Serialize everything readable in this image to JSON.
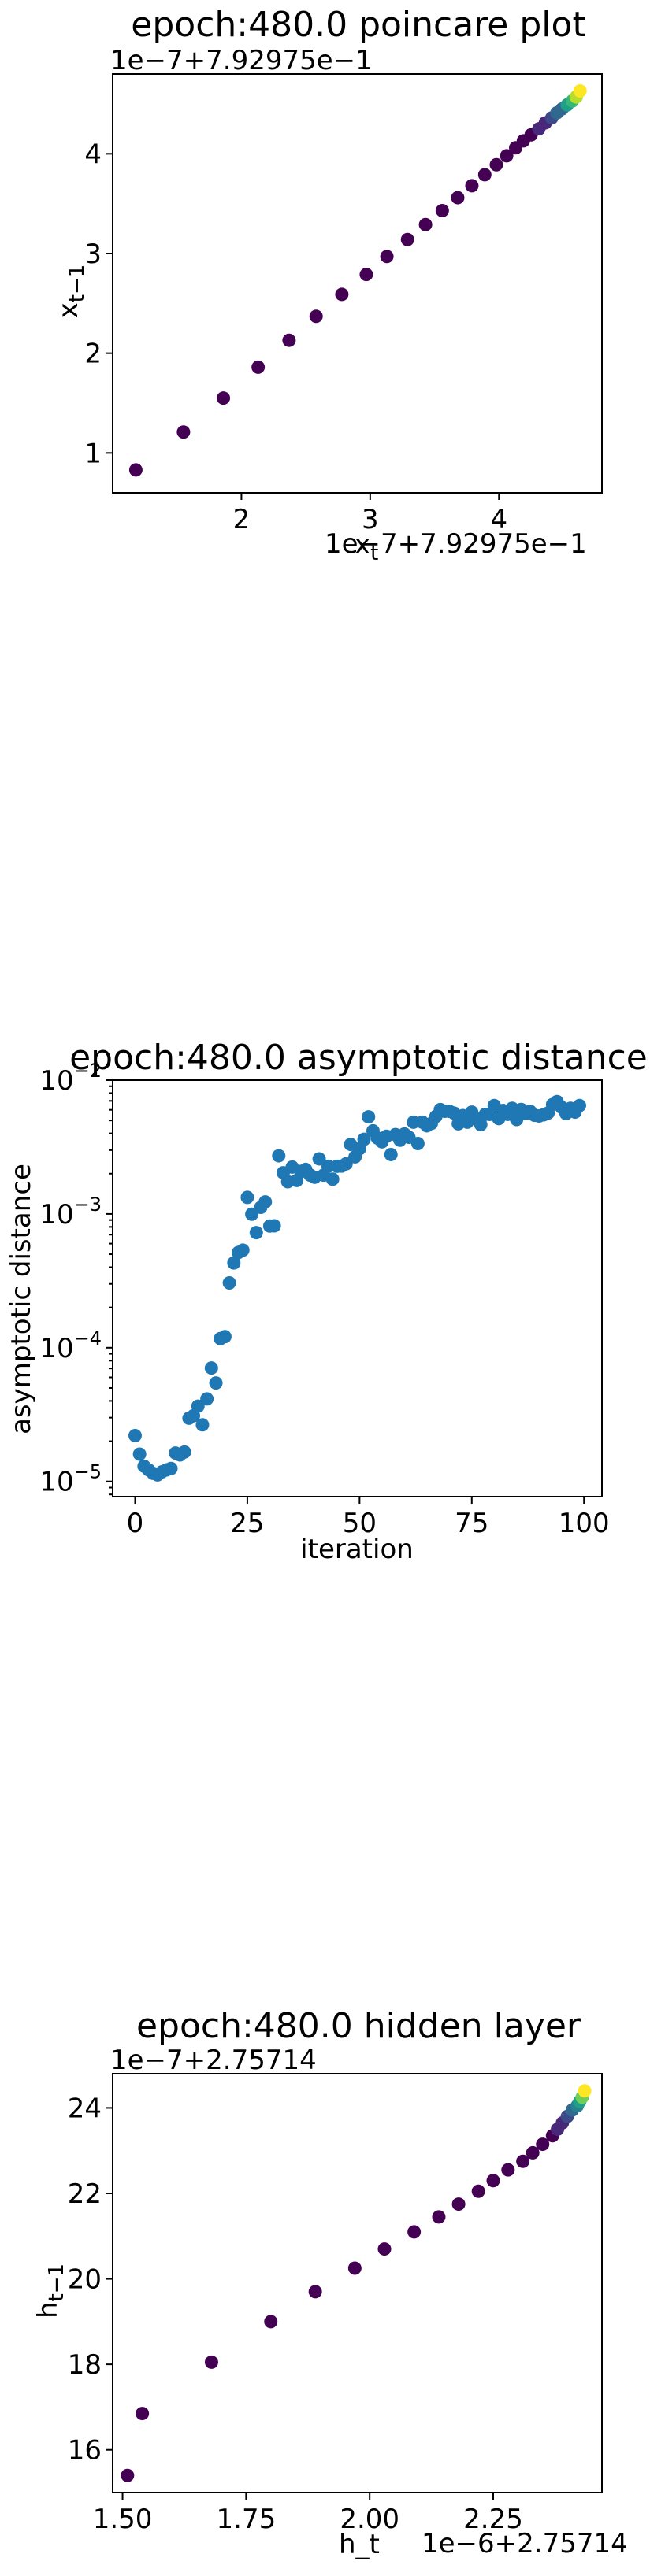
{
  "chart_data": [
    {
      "type": "scatter",
      "title": "epoch:480.0 poincare plot",
      "xlabel": "x_t",
      "ylabel": "x_{t-1}",
      "xlim": [
        1.0,
        4.8
      ],
      "ylim": [
        0.6,
        4.8
      ],
      "x_ticks": [
        2,
        3,
        4
      ],
      "y_ticks": [
        1,
        2,
        3,
        4
      ],
      "x_offset_text": "1e−7+7.92975e−1",
      "y_offset_text": "1e−7+7.92975e−1",
      "colormap": "viridis",
      "x": [
        1.18,
        1.55,
        1.86,
        2.13,
        2.37,
        2.58,
        2.78,
        2.97,
        3.13,
        3.29,
        3.43,
        3.56,
        3.68,
        3.79,
        3.89,
        3.98,
        4.06,
        4.13,
        4.19,
        4.25,
        4.31,
        4.36,
        4.41,
        4.45,
        4.49,
        4.53,
        4.57,
        4.6,
        4.63
      ],
      "y": [
        0.83,
        1.21,
        1.55,
        1.86,
        2.13,
        2.37,
        2.59,
        2.79,
        2.97,
        3.14,
        3.29,
        3.43,
        3.56,
        3.68,
        3.79,
        3.89,
        3.98,
        4.06,
        4.13,
        4.19,
        4.25,
        4.31,
        4.36,
        4.41,
        4.45,
        4.49,
        4.53,
        4.57,
        4.63
      ]
    },
    {
      "type": "scatter",
      "title": "epoch:480.0 asymptotic distance",
      "xlabel": "iteration",
      "ylabel": "asymptotic distance",
      "xlim": [
        -5,
        104
      ],
      "ylim": [
        7.7e-06,
        0.01
      ],
      "log_y": true,
      "x_ticks": [
        0,
        25,
        50,
        75,
        100
      ],
      "y_tick_exponents": [
        -5,
        -4,
        -3,
        -2
      ],
      "color": "#1f77b4",
      "x": [
        0,
        1,
        2,
        3,
        4,
        5,
        6,
        7,
        8,
        9,
        10,
        11,
        12,
        13,
        14,
        15,
        16,
        17,
        18,
        19,
        20,
        21,
        22,
        23,
        24,
        25,
        26,
        27,
        28,
        29,
        30,
        31,
        32,
        33,
        34,
        35,
        36,
        37,
        38,
        39,
        40,
        41,
        42,
        43,
        44,
        45,
        46,
        47,
        48,
        49,
        50,
        51,
        52,
        53,
        54,
        55,
        56,
        57,
        58,
        59,
        60,
        61,
        62,
        63,
        64,
        65,
        66,
        67,
        68,
        69,
        70,
        71,
        72,
        73,
        74,
        75,
        76,
        77,
        78,
        79,
        80,
        81,
        82,
        83,
        84,
        85,
        86,
        87,
        88,
        89,
        90,
        91,
        92,
        93,
        94,
        95,
        96,
        97,
        98,
        99
      ],
      "y": [
        2.2e-05,
        1.6e-05,
        1.3e-05,
        1.22e-05,
        1.15e-05,
        1.12e-05,
        1.18e-05,
        1.22e-05,
        1.25e-05,
        1.63e-05,
        1.58e-05,
        1.66e-05,
        2.97e-05,
        3.1e-05,
        3.65e-05,
        2.65e-05,
        4.14e-05,
        7.05e-05,
        5.45e-05,
        0.000117,
        0.000121,
        0.000305,
        0.00043,
        0.000515,
        0.000536,
        0.00133,
        0.000995,
        0.000725,
        0.00112,
        0.00123,
        0.000812,
        0.000815,
        0.00272,
        0.00203,
        0.00174,
        0.00224,
        0.00178,
        0.00208,
        0.00215,
        0.00195,
        0.00188,
        0.00258,
        0.00195,
        0.00227,
        0.00182,
        0.00227,
        0.00228,
        0.00237,
        0.00331,
        0.00267,
        0.00307,
        0.00361,
        0.00532,
        0.00418,
        0.00369,
        0.00346,
        0.00381,
        0.00278,
        0.00392,
        0.00356,
        0.00396,
        0.00374,
        0.00485,
        0.00336,
        0.00485,
        0.00456,
        0.00475,
        0.00535,
        0.00603,
        0.00585,
        0.00585,
        0.00568,
        0.00472,
        0.00543,
        0.00485,
        0.00577,
        0.00516,
        0.00465,
        0.00555,
        0.00555,
        0.00646,
        0.00516,
        0.00593,
        0.00555,
        0.00616,
        0.00508,
        0.00604,
        0.00562,
        0.00585,
        0.00546,
        0.0054,
        0.00551,
        0.00568,
        0.00657,
        0.00691,
        0.00627,
        0.00562,
        0.00616,
        0.00577,
        0.00646
      ]
    },
    {
      "type": "scatter",
      "title": "epoch:480.0 hidden layer",
      "xlabel": "h_t",
      "ylabel": "h_{t-1}",
      "xlim": [
        1.48,
        2.47
      ],
      "ylim": [
        15.0,
        24.8
      ],
      "x_ticks": [
        1.5,
        1.75,
        2.0,
        2.25
      ],
      "x_tick_labels": [
        "1.50",
        "1.75",
        "2.00",
        "2.25"
      ],
      "y_ticks": [
        16,
        18,
        20,
        22,
        24
      ],
      "x_offset_text": "1e−6+2.75714",
      "y_offset_text": "1e−7+2.75714",
      "colormap": "viridis",
      "x": [
        1.51,
        1.54,
        1.68,
        1.8,
        1.89,
        1.97,
        2.03,
        2.09,
        2.14,
        2.18,
        2.22,
        2.25,
        2.28,
        2.31,
        2.33,
        2.35,
        2.37,
        2.38,
        2.39,
        2.4,
        2.41,
        2.42,
        2.425,
        2.43,
        2.435
      ],
      "y": [
        15.4,
        16.85,
        18.05,
        19.0,
        19.7,
        20.25,
        20.7,
        21.1,
        21.45,
        21.75,
        22.05,
        22.3,
        22.55,
        22.75,
        22.95,
        23.15,
        23.35,
        23.5,
        23.65,
        23.8,
        23.95,
        24.05,
        24.15,
        24.25,
        24.4
      ]
    }
  ]
}
